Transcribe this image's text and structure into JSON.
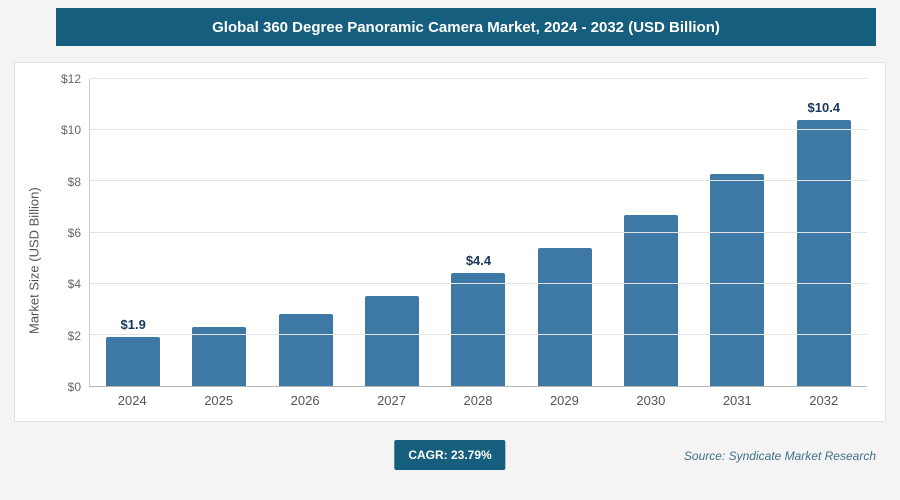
{
  "header": {
    "title": "Global 360 Degree Panoramic Camera Market, 2024 - 2032 (USD Billion)"
  },
  "chart_data": {
    "type": "bar",
    "title": "Global 360 Degree Panoramic Camera Market, 2024 - 2032 (USD Billion)",
    "categories": [
      "2024",
      "2025",
      "2026",
      "2027",
      "2028",
      "2029",
      "2030",
      "2031",
      "2032"
    ],
    "values": [
      1.9,
      2.3,
      2.8,
      3.5,
      4.4,
      5.4,
      6.7,
      8.3,
      10.4
    ],
    "bar_labels": [
      "$1.9",
      "",
      "",
      "",
      "$4.4",
      "",
      "",
      "",
      "$10.4"
    ],
    "xlabel": "",
    "ylabel": "Market Size (USD Billion)",
    "ylim": [
      0,
      12
    ],
    "ytick_step": 2,
    "ytick_labels": [
      "$0",
      "$2",
      "$4",
      "$6",
      "$8",
      "$10",
      "$12"
    ],
    "grid": true,
    "legend": "none",
    "bar_color": "#3e78a5",
    "label_color": "#17375e"
  },
  "footer": {
    "cagr_label": "CAGR: 23.79%",
    "source": "Source: Syndicate Market Research"
  },
  "colors": {
    "accent": "#155e7d"
  }
}
